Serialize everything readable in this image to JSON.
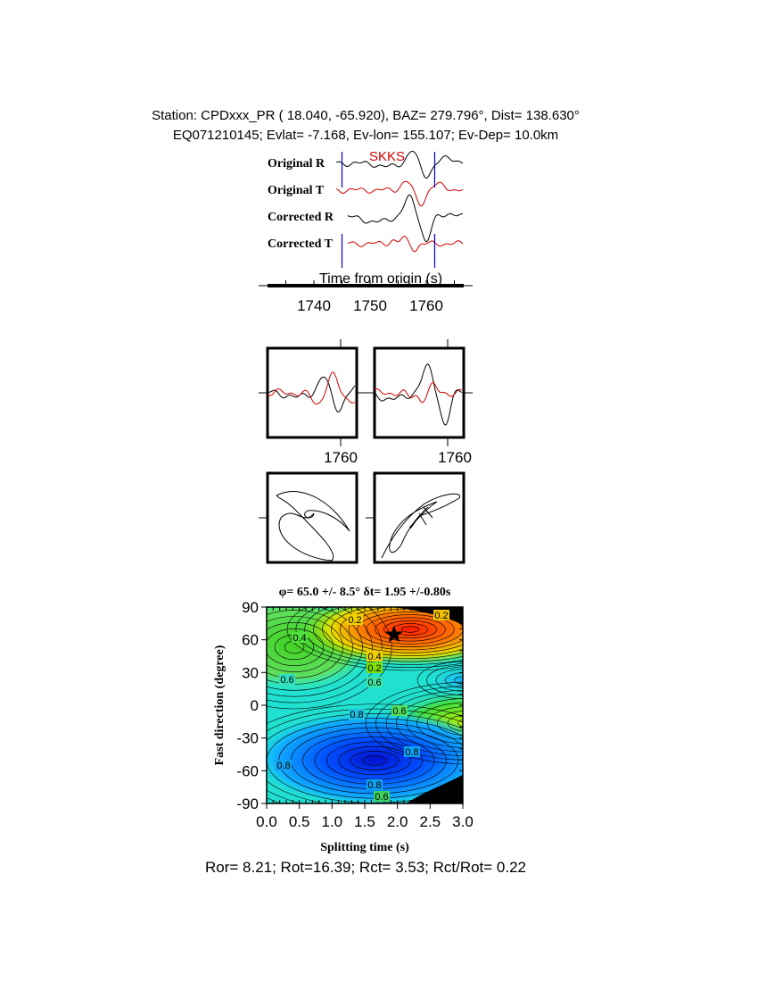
{
  "header": {
    "line1": "Station: CPDxxx_PR (  18.040,  -65.920), BAZ=  279.796°, Dist=  138.630°",
    "line2": "EQ071210145; Evlat=  -7.168, Ev-lon= 155.107; Ev-Dep= 10.0km"
  },
  "chart_data": [
    {
      "type": "line",
      "phase_label": "SKKS",
      "trace_labels": [
        "Original R",
        "Original T",
        "Corrected R",
        "Corrected T"
      ],
      "trace_colors": [
        "#000000",
        "#d00000",
        "#000000",
        "#d00000"
      ],
      "xlabel": "Time from origin (s)",
      "x_ticks": [
        "1740",
        "1750",
        "1760"
      ],
      "xlim": [
        1732,
        1767
      ],
      "window_markers": [
        1745,
        1761.5
      ],
      "marker_color": "#0000cc"
    },
    {
      "type": "line",
      "panels": [
        "original",
        "corrected"
      ],
      "x_ticks": [
        "1760"
      ],
      "series_colors": [
        "#000000",
        "#d00000"
      ]
    },
    {
      "type": "line",
      "panels": [
        "particle-motion-original",
        "particle-motion-corrected"
      ]
    },
    {
      "type": "heatmap",
      "title": "φ= 65.0 +/- 8.5° δt= 1.95 +/-0.80s",
      "xlabel": "Splitting time (s)",
      "ylabel": "Fast direction (degree)",
      "xlim": [
        0.0,
        3.0
      ],
      "ylim": [
        -90,
        90
      ],
      "x_ticks": [
        "0.0",
        "0.5",
        "1.0",
        "1.5",
        "2.0",
        "2.5",
        "3.0"
      ],
      "y_ticks": [
        "90",
        "60",
        "30",
        "0",
        "-30",
        "-60",
        "-90"
      ],
      "best_fit": {
        "dt": 1.95,
        "phi": 65.0
      },
      "contour_labels": [
        "0.2",
        "0.2",
        "0.4",
        "0.2",
        "0.4",
        "0.6",
        "0.6",
        "0.8",
        "0.6",
        "0.8",
        "0.8",
        "0.8",
        "0.6"
      ]
    }
  ],
  "footer": "Ror= 8.21; Rot=16.39; Rct= 3.53; Rct/Rot= 0.22"
}
